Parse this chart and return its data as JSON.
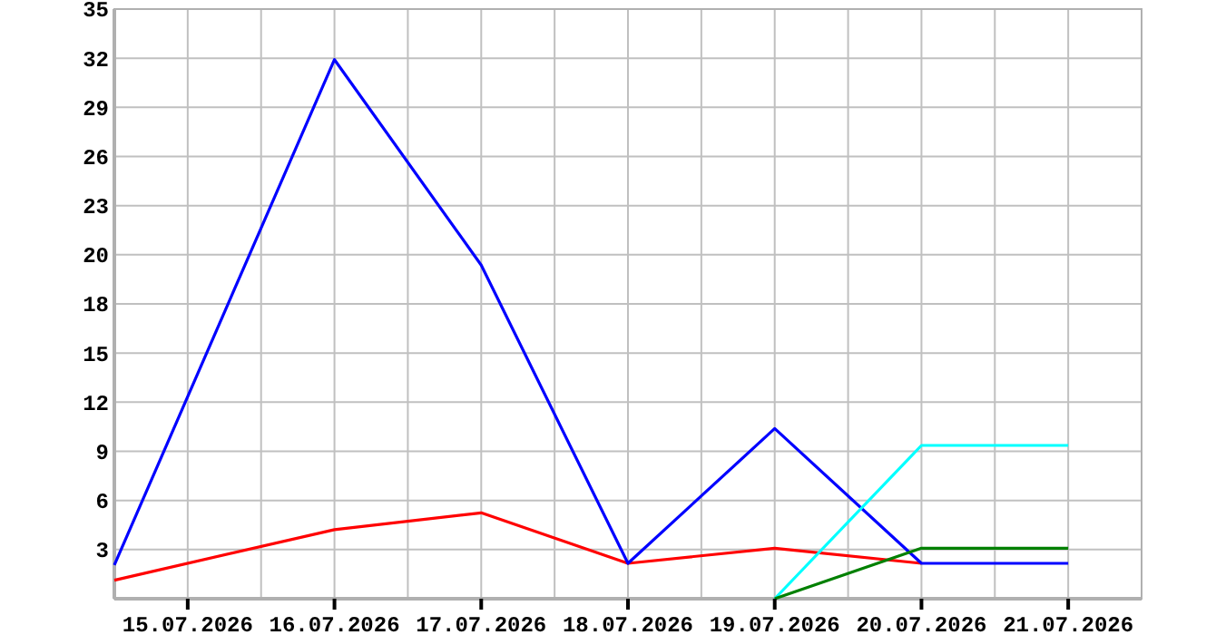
{
  "chart_data": {
    "type": "line",
    "x": [
      "2026-07-14T12:00",
      "2026-07-16",
      "2026-07-17",
      "2026-07-18",
      "2026-07-19",
      "2026-07-20",
      "2026-07-21"
    ],
    "series": [
      {
        "color": "#ff0000",
        "x": [
          "2026-07-14T12:00",
          "2026-07-16",
          "2026-07-17",
          "2026-07-18",
          "2026-07-19",
          "2026-07-20"
        ],
        "values": [
          1.1,
          4.1,
          5.1,
          2.1,
          3.0,
          2.1
        ]
      },
      {
        "color": "#0000ff",
        "values": [
          2,
          32,
          19.8,
          2.1,
          10.1,
          2.1,
          2.1
        ]
      },
      {
        "color": "#00ffff",
        "x": [
          "2026-07-19",
          "2026-07-20",
          "2026-07-21"
        ],
        "values": [
          0,
          9.1,
          9.1
        ]
      },
      {
        "color": "#008000",
        "x": [
          "2026-07-19",
          "2026-07-20",
          "2026-07-21"
        ],
        "values": [
          0,
          3,
          3
        ]
      }
    ],
    "xlim": [
      "2026-07-14T12:00",
      "2026-07-21T12:00"
    ],
    "xticks": [
      {
        "value": "2026-07-14T12:00",
        "label": null
      },
      {
        "value": "2026-07-15",
        "label": "15.07.2026"
      },
      {
        "value": "2026-07-15T12:00",
        "label": null
      },
      {
        "value": "2026-07-16",
        "label": "16.07.2026"
      },
      {
        "value": "2026-07-16T12:00",
        "label": null
      },
      {
        "value": "2026-07-17",
        "label": "17.07.2026"
      },
      {
        "value": "2026-07-17T12:00",
        "label": null
      },
      {
        "value": "2026-07-18",
        "label": "18.07.2026"
      },
      {
        "value": "2026-07-18T12:00",
        "label": null
      },
      {
        "value": "2026-07-19",
        "label": "19.07.2026"
      },
      {
        "value": "2026-07-19T12:00",
        "label": null
      },
      {
        "value": "2026-07-20",
        "label": "20.07.2026"
      },
      {
        "value": "2026-07-20T12:00",
        "label": null
      },
      {
        "value": "2026-07-21",
        "label": "21.07.2026"
      },
      {
        "value": "2026-07-21T12:00",
        "label": null
      }
    ],
    "ylim": [
      0,
      35
    ],
    "yticks": [
      {
        "value": 2.9167,
        "label": "3"
      },
      {
        "value": 5.8333,
        "label": "6"
      },
      {
        "value": 8.75,
        "label": "9"
      },
      {
        "value": 11.6667,
        "label": "12"
      },
      {
        "value": 14.5833,
        "label": "15"
      },
      {
        "value": 17.5,
        "label": "18"
      },
      {
        "value": 20.4167,
        "label": "20"
      },
      {
        "value": 23.3333,
        "label": "23"
      },
      {
        "value": 26.25,
        "label": "26"
      },
      {
        "value": 29.1667,
        "label": "29"
      },
      {
        "value": 32.0833,
        "label": "32"
      },
      35
    ],
    "grid": true,
    "marker": "none",
    "line_style": "solid"
  }
}
